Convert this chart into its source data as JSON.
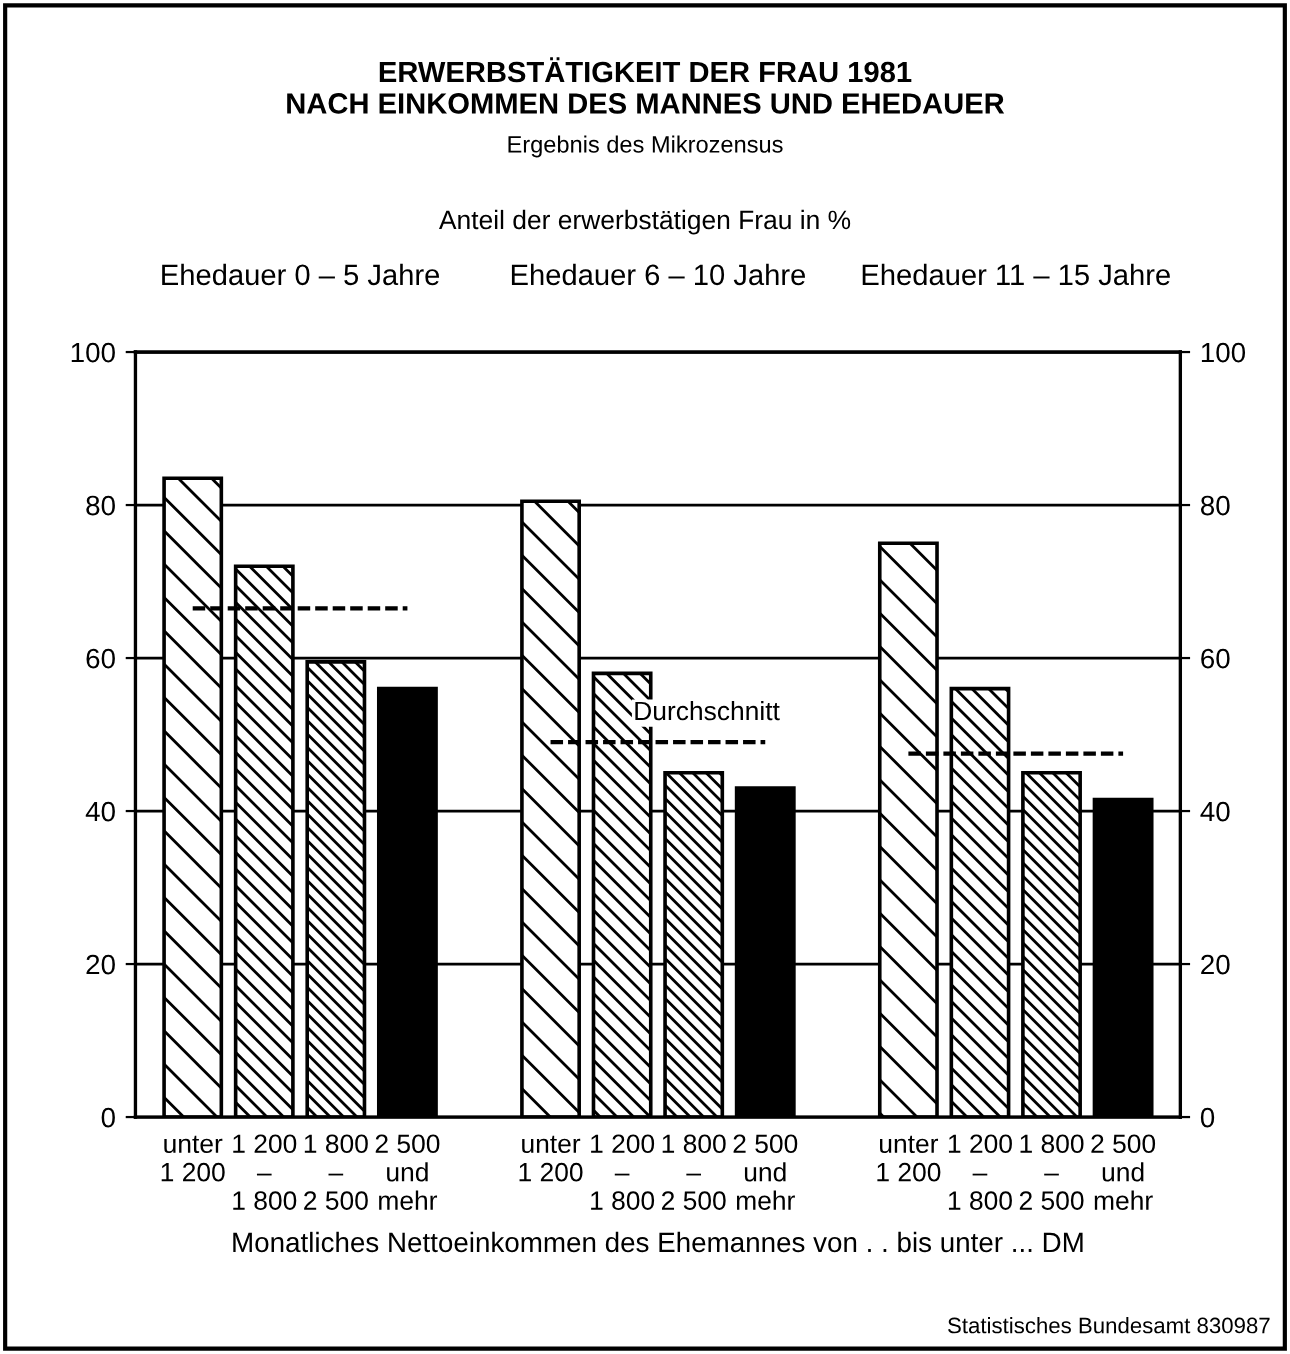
{
  "chart_data": {
    "type": "bar",
    "title": "ERWERBSTÄTIGKEIT DER FRAU 1981\nNACH EINKOMMEN DES MANNES UND EHEDAUER",
    "subtitle": "Ergebnis des Mikrozensus",
    "ylabel": "Anteil der erwerbstätigen Frau in %",
    "xlabel": "Monatliches Nettoeinkommen des Ehemannes von . . bis unter ... DM",
    "annotations": [
      "Ehedauer 0 – 5 Jahre",
      "Ehedauer 6 – 10 Jahre",
      "Ehedauer 11 – 15 Jahre",
      "Durchschnitt",
      "Statistisches Bundesamt 830987"
    ],
    "categories": [
      "unter\n1 200",
      "1 200\n–\n1 800",
      "1 800\n–\n2 500",
      "2 500\nund\nmehr",
      null,
      "unter\n1 200",
      "1 200\n–\n1 800",
      "1 800\n–\n2 500",
      "2 500\nund\nmehr",
      null,
      "unter\n1 200",
      "1 200\n–\n1 800",
      "1 800\n–\n2 500",
      "2 500\nund\nmehr"
    ],
    "series": [
      {
        "color": "#000000",
        "values": [
          83.5,
          72,
          59.5,
          56,
          null,
          80.5,
          58,
          45,
          43,
          null,
          75,
          56,
          45,
          41.5
        ]
      },
      {
        "type": "line",
        "color": "#000000",
        "line_style": "dashed",
        "values": [
          66.5,
          66.5,
          66.5,
          66.5,
          null,
          null,
          null,
          null,
          null,
          null,
          null,
          null,
          null,
          null
        ]
      },
      {
        "type": "line",
        "color": "#000000",
        "line_style": "dashed",
        "values": [
          null,
          null,
          null,
          null,
          null,
          49,
          49,
          49,
          49,
          null,
          null,
          null,
          null,
          null
        ]
      },
      {
        "type": "line",
        "color": "#000000",
        "line_style": "dashed",
        "values": [
          null,
          null,
          null,
          null,
          null,
          null,
          null,
          null,
          null,
          null,
          47.5,
          47.5,
          47.5,
          47.5
        ]
      }
    ],
    "ylim": [
      0,
      100
    ],
    "yticks": [
      0,
      20,
      40,
      60,
      80,
      100
    ],
    "y2lim": [
      0,
      100
    ],
    "y2ticks": [
      0,
      20,
      40,
      60,
      80,
      100
    ],
    "grid": "y"
  }
}
